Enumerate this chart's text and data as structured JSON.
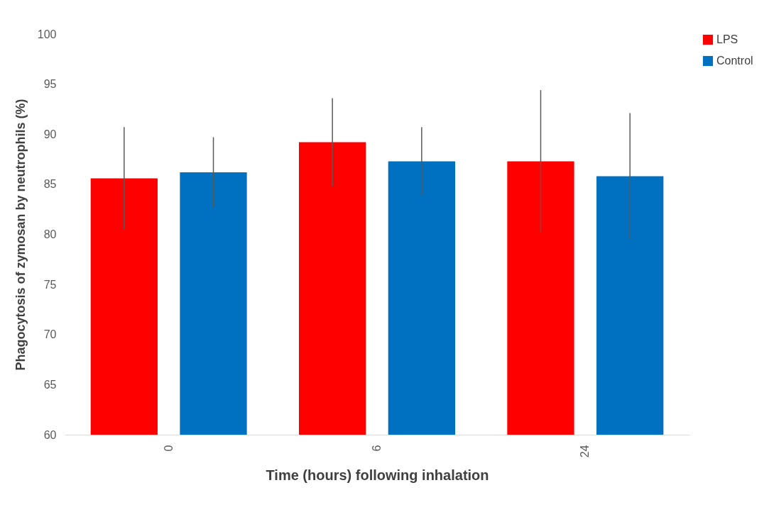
{
  "chart_data": {
    "type": "bar",
    "xlabel": "Time (hours) following inhalation",
    "ylabel": "Phagocytosis of zymosan by neutrophils (%)",
    "categories": [
      "0",
      "6",
      "24"
    ],
    "series": [
      {
        "name": "LPS",
        "color": "#ff0000",
        "values": [
          85.6,
          89.2,
          87.3
        ],
        "errors": [
          5.1,
          4.4,
          7.1
        ]
      },
      {
        "name": "Control",
        "color": "#0070c0",
        "values": [
          86.2,
          87.3,
          85.8
        ],
        "errors": [
          3.5,
          3.4,
          6.3
        ]
      }
    ],
    "ylim": [
      60,
      100
    ],
    "yticks": [
      60,
      65,
      70,
      75,
      80,
      85,
      90,
      95,
      100
    ],
    "grid": false,
    "legend": "right"
  }
}
